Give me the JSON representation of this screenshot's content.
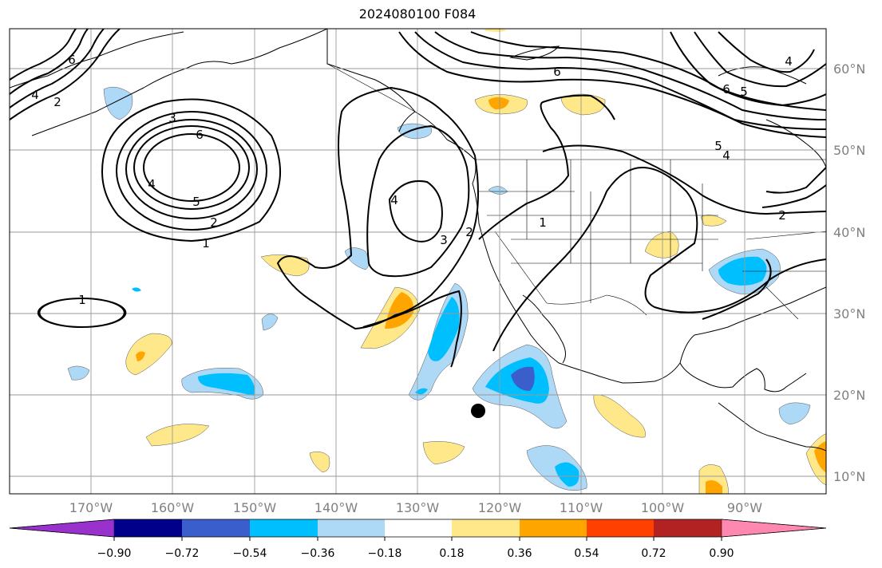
{
  "title": "2024080100 F084",
  "latitude_labels": [
    "60°N",
    "50°N",
    "40°N",
    "30°N",
    "20°N",
    "10°N"
  ],
  "longitude_labels": [
    "170°W",
    "160°W",
    "150°W",
    "140°W",
    "130°W",
    "120°W",
    "110°W",
    "100°W",
    "90°W"
  ],
  "colorbar": {
    "tick_labels": [
      "−0.90",
      "−0.72",
      "−0.54",
      "−0.36",
      "−0.18",
      "0.18",
      "0.36",
      "0.54",
      "0.72",
      "0.90"
    ],
    "colors": [
      "#9932cc",
      "#00008b",
      "#3a5fcd",
      "#00bfff",
      "#add8f6",
      "#ffffff",
      "#ffe88a",
      "#ffa500",
      "#ff4000",
      "#b22222",
      "#ff88b0"
    ]
  },
  "contour_labels": [
    "6",
    "3",
    "2",
    "1",
    "4",
    "5",
    "2",
    "4",
    "6",
    "3",
    "1",
    "2",
    "1",
    "4",
    "6",
    "5",
    "4",
    "6",
    "4",
    "5",
    "2"
  ],
  "colors": {
    "frame": "#000000",
    "grid": "#9a9a9a",
    "axis_text": "#808080"
  },
  "marker": "storm-position-dot"
}
